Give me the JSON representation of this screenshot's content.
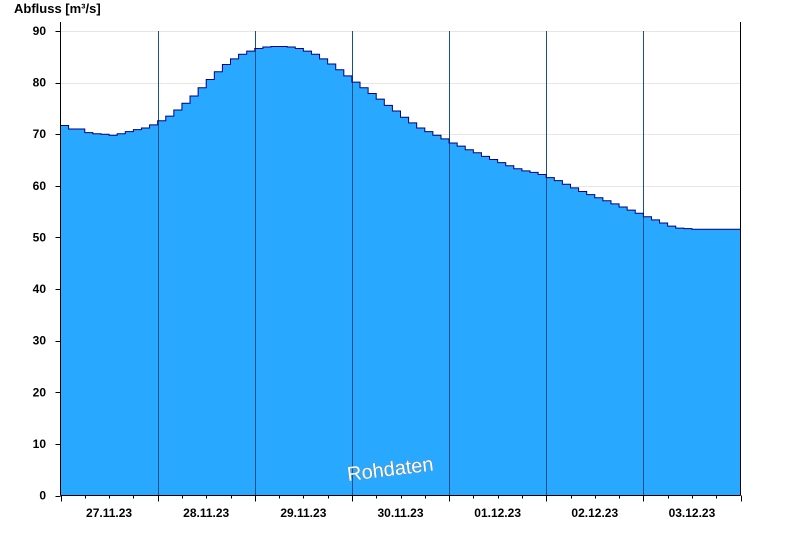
{
  "chart_data": {
    "type": "area",
    "title": "",
    "ylabel": "Abfluss [m³/s]",
    "xlabel": "",
    "ylim": [
      0,
      90
    ],
    "yticks": [
      0,
      10,
      20,
      30,
      40,
      50,
      60,
      70,
      80,
      90
    ],
    "grid": true,
    "fill_color": "#29a8ff",
    "line_color": "#000080",
    "watermark": "Rohdaten",
    "x_day_labels": [
      "27.11.23",
      "28.11.23",
      "29.11.23",
      "30.11.23",
      "01.12.23",
      "02.12.23",
      "03.12.23"
    ],
    "series": [
      {
        "x": [
          "27.11.23 00:00",
          "27.11.23 02:00",
          "27.11.23 04:00",
          "27.11.23 06:00",
          "27.11.23 08:00",
          "27.11.23 10:00",
          "27.11.23 12:00",
          "27.11.23 14:00",
          "27.11.23 16:00",
          "27.11.23 18:00",
          "27.11.23 20:00",
          "27.11.23 22:00",
          "28.11.23 00:00",
          "28.11.23 02:00",
          "28.11.23 04:00",
          "28.11.23 06:00",
          "28.11.23 08:00",
          "28.11.23 10:00",
          "28.11.23 12:00",
          "28.11.23 14:00",
          "28.11.23 16:00",
          "28.11.23 18:00",
          "28.11.23 20:00",
          "28.11.23 22:00",
          "29.11.23 00:00",
          "29.11.23 02:00",
          "29.11.23 04:00",
          "29.11.23 06:00",
          "29.11.23 08:00",
          "29.11.23 10:00",
          "29.11.23 12:00",
          "29.11.23 14:00",
          "29.11.23 16:00",
          "29.11.23 18:00",
          "29.11.23 20:00",
          "29.11.23 22:00",
          "30.11.23 00:00",
          "30.11.23 02:00",
          "30.11.23 04:00",
          "30.11.23 06:00",
          "30.11.23 08:00",
          "30.11.23 10:00",
          "30.11.23 12:00",
          "30.11.23 14:00",
          "30.11.23 16:00",
          "30.11.23 18:00",
          "30.11.23 20:00",
          "30.11.23 22:00",
          "01.12.23 00:00",
          "01.12.23 02:00",
          "01.12.23 04:00",
          "01.12.23 06:00",
          "01.12.23 08:00",
          "01.12.23 10:00",
          "01.12.23 12:00",
          "01.12.23 14:00",
          "01.12.23 16:00",
          "01.12.23 18:00",
          "01.12.23 20:00",
          "01.12.23 22:00",
          "02.12.23 00:00",
          "02.12.23 02:00",
          "02.12.23 04:00",
          "02.12.23 06:00",
          "02.12.23 08:00",
          "02.12.23 10:00",
          "02.12.23 12:00",
          "02.12.23 14:00",
          "02.12.23 16:00",
          "02.12.23 18:00",
          "02.12.23 20:00",
          "02.12.23 22:00",
          "03.12.23 00:00",
          "03.12.23 02:00",
          "03.12.23 04:00",
          "03.12.23 06:00",
          "03.12.23 08:00",
          "03.12.23 10:00",
          "03.12.23 12:00",
          "03.12.23 14:00",
          "03.12.23 16:00",
          "03.12.23 18:00",
          "03.12.23 20:00",
          "03.12.23 22:00",
          "04.12.23 00:00"
        ],
        "y": [
          71.7,
          71.0,
          71.0,
          70.3,
          70.1,
          70.0,
          69.8,
          70.1,
          70.5,
          70.9,
          71.2,
          71.8,
          72.6,
          73.5,
          74.7,
          76.0,
          77.4,
          79.0,
          80.6,
          82.1,
          83.5,
          84.6,
          85.5,
          86.1,
          86.6,
          86.9,
          87.0,
          87.0,
          86.9,
          86.6,
          86.1,
          85.5,
          84.6,
          83.6,
          82.5,
          81.3,
          80.1,
          79.0,
          77.9,
          76.8,
          75.6,
          74.5,
          73.3,
          72.2,
          71.2,
          70.5,
          69.8,
          69.1,
          68.3,
          67.7,
          67.0,
          66.4,
          65.7,
          65.1,
          64.5,
          63.9,
          63.3,
          62.9,
          62.6,
          62.2,
          61.6,
          61.0,
          60.3,
          59.6,
          58.9,
          58.3,
          57.7,
          57.1,
          56.5,
          55.9,
          55.3,
          54.7,
          54.0,
          53.4,
          52.8,
          52.2,
          51.8,
          51.7,
          51.6,
          51.6,
          51.6,
          51.6,
          51.6,
          51.6,
          51.6
        ]
      }
    ]
  }
}
